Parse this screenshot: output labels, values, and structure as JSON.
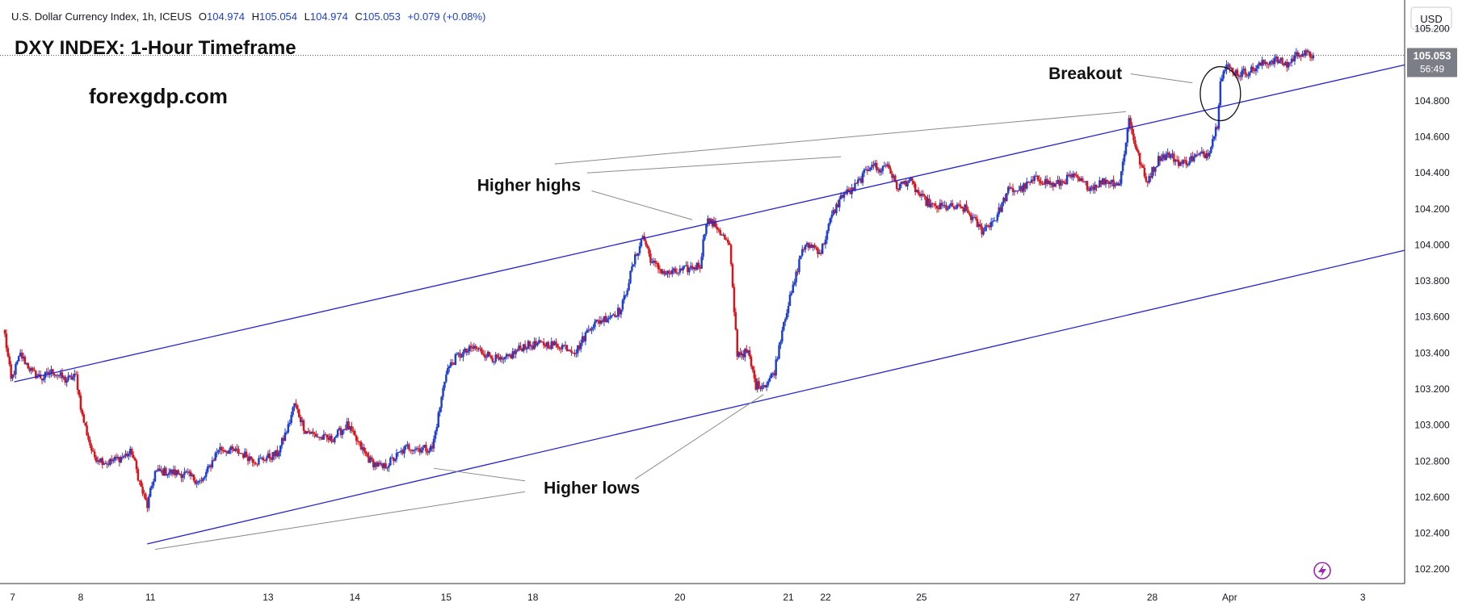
{
  "header": {
    "symbol_line": "U.S. Dollar Currency Index, 1h, ICEUS",
    "ohlc": [
      {
        "label": "O",
        "value": "104.974"
      },
      {
        "label": "H",
        "value": "105.054"
      },
      {
        "label": "L",
        "value": "104.974"
      },
      {
        "label": "C",
        "value": "105.053"
      }
    ],
    "change": "+0.079 (+0.08%)"
  },
  "currency_label": "USD",
  "price_badge": {
    "price": "105.053",
    "countdown": "56:49"
  },
  "colors": {
    "up": "#1e3fd1",
    "down": "#d5141b",
    "trendline": "#2323cc",
    "annotation_line": "#8a8a8a",
    "axis_text": "#131722",
    "price_badge_bg": "#7b7e86",
    "lightning": "#9c27b0"
  },
  "icons": {
    "lightning": "lightning-bolt-icon"
  },
  "chart_data": {
    "type": "candlestick",
    "title": "DXY INDEX: 1-Hour Timeframe",
    "watermark": "forexgdp.com",
    "y_ticks": [
      105.2,
      104.8,
      104.6,
      104.4,
      104.2,
      104.0,
      103.8,
      103.6,
      103.4,
      103.2,
      103.0,
      102.8,
      102.6,
      102.4,
      102.2
    ],
    "y_tick_labels": [
      "105.200",
      "104.800",
      "104.600",
      "104.400",
      "104.200",
      "104.000",
      "103.800",
      "103.600",
      "103.400",
      "103.200",
      "103.000",
      "102.800",
      "102.600",
      "102.400",
      "102.200"
    ],
    "ylim": [
      102.12,
      105.36
    ],
    "x_labels": [
      "7",
      "8",
      "11",
      "13",
      "14",
      "15",
      "18",
      "20",
      "21",
      "22",
      "25",
      "27",
      "28",
      "Apr",
      "3"
    ],
    "x_label_bars": [
      5,
      49,
      94,
      170,
      226,
      285,
      341,
      436,
      506,
      530,
      592,
      691,
      741,
      791,
      877
    ],
    "bar_count": 904,
    "last_close_bar": 845,
    "price_path": [
      {
        "bar": 0,
        "price": 103.5
      },
      {
        "bar": 4,
        "price": 103.25
      },
      {
        "bar": 10,
        "price": 103.39
      },
      {
        "bar": 18,
        "price": 103.29
      },
      {
        "bar": 24,
        "price": 103.26
      },
      {
        "bar": 31,
        "price": 103.3
      },
      {
        "bar": 39,
        "price": 103.25
      },
      {
        "bar": 46,
        "price": 103.27
      },
      {
        "bar": 50,
        "price": 103.05
      },
      {
        "bar": 57,
        "price": 102.83
      },
      {
        "bar": 66,
        "price": 102.79
      },
      {
        "bar": 75,
        "price": 102.82
      },
      {
        "bar": 82,
        "price": 102.85
      },
      {
        "bar": 88,
        "price": 102.65
      },
      {
        "bar": 92,
        "price": 102.55
      },
      {
        "bar": 97,
        "price": 102.74
      },
      {
        "bar": 104,
        "price": 102.74
      },
      {
        "bar": 116,
        "price": 102.73
      },
      {
        "bar": 127,
        "price": 102.68
      },
      {
        "bar": 138,
        "price": 102.87
      },
      {
        "bar": 151,
        "price": 102.85
      },
      {
        "bar": 163,
        "price": 102.8
      },
      {
        "bar": 176,
        "price": 102.84
      },
      {
        "bar": 183,
        "price": 102.99
      },
      {
        "bar": 187,
        "price": 103.12
      },
      {
        "bar": 194,
        "price": 102.97
      },
      {
        "bar": 204,
        "price": 102.93
      },
      {
        "bar": 211,
        "price": 102.92
      },
      {
        "bar": 221,
        "price": 103.0
      },
      {
        "bar": 228,
        "price": 102.9
      },
      {
        "bar": 236,
        "price": 102.8
      },
      {
        "bar": 244,
        "price": 102.76
      },
      {
        "bar": 252,
        "price": 102.82
      },
      {
        "bar": 260,
        "price": 102.88
      },
      {
        "bar": 268,
        "price": 102.87
      },
      {
        "bar": 276,
        "price": 102.87
      },
      {
        "bar": 281,
        "price": 103.1
      },
      {
        "bar": 285,
        "price": 103.3
      },
      {
        "bar": 292,
        "price": 103.38
      },
      {
        "bar": 303,
        "price": 103.43
      },
      {
        "bar": 314,
        "price": 103.38
      },
      {
        "bar": 321,
        "price": 103.35
      },
      {
        "bar": 335,
        "price": 103.44
      },
      {
        "bar": 349,
        "price": 103.45
      },
      {
        "bar": 361,
        "price": 103.44
      },
      {
        "bar": 369,
        "price": 103.41
      },
      {
        "bar": 378,
        "price": 103.55
      },
      {
        "bar": 389,
        "price": 103.6
      },
      {
        "bar": 398,
        "price": 103.64
      },
      {
        "bar": 406,
        "price": 103.9
      },
      {
        "bar": 412,
        "price": 104.05
      },
      {
        "bar": 418,
        "price": 103.9
      },
      {
        "bar": 427,
        "price": 103.84
      },
      {
        "bar": 435,
        "price": 103.85
      },
      {
        "bar": 449,
        "price": 103.89
      },
      {
        "bar": 453,
        "price": 104.14
      },
      {
        "bar": 460,
        "price": 104.1
      },
      {
        "bar": 468,
        "price": 103.99
      },
      {
        "bar": 473,
        "price": 103.4
      },
      {
        "bar": 480,
        "price": 103.4
      },
      {
        "bar": 485,
        "price": 103.22
      },
      {
        "bar": 492,
        "price": 103.23
      },
      {
        "bar": 497,
        "price": 103.3
      },
      {
        "bar": 503,
        "price": 103.58
      },
      {
        "bar": 509,
        "price": 103.76
      },
      {
        "bar": 515,
        "price": 103.98
      },
      {
        "bar": 521,
        "price": 104.0
      },
      {
        "bar": 527,
        "price": 103.96
      },
      {
        "bar": 534,
        "price": 104.16
      },
      {
        "bar": 541,
        "price": 104.28
      },
      {
        "bar": 547,
        "price": 104.3
      },
      {
        "bar": 554,
        "price": 104.38
      },
      {
        "bar": 560,
        "price": 104.46
      },
      {
        "bar": 564,
        "price": 104.41
      },
      {
        "bar": 570,
        "price": 104.45
      },
      {
        "bar": 576,
        "price": 104.32
      },
      {
        "bar": 584,
        "price": 104.36
      },
      {
        "bar": 592,
        "price": 104.26
      },
      {
        "bar": 600,
        "price": 104.21
      },
      {
        "bar": 610,
        "price": 104.21
      },
      {
        "bar": 620,
        "price": 104.2
      },
      {
        "bar": 631,
        "price": 104.08
      },
      {
        "bar": 640,
        "price": 104.15
      },
      {
        "bar": 648,
        "price": 104.3
      },
      {
        "bar": 656,
        "price": 104.31
      },
      {
        "bar": 667,
        "price": 104.37
      },
      {
        "bar": 678,
        "price": 104.33
      },
      {
        "bar": 689,
        "price": 104.38
      },
      {
        "bar": 701,
        "price": 104.32
      },
      {
        "bar": 711,
        "price": 104.36
      },
      {
        "bar": 720,
        "price": 104.34
      },
      {
        "bar": 726,
        "price": 104.7
      },
      {
        "bar": 731,
        "price": 104.52
      },
      {
        "bar": 737,
        "price": 104.35
      },
      {
        "bar": 746,
        "price": 104.49
      },
      {
        "bar": 752,
        "price": 104.5
      },
      {
        "bar": 760,
        "price": 104.45
      },
      {
        "bar": 769,
        "price": 104.49
      },
      {
        "bar": 777,
        "price": 104.51
      },
      {
        "bar": 783,
        "price": 104.67
      },
      {
        "bar": 785,
        "price": 104.93
      },
      {
        "bar": 789,
        "price": 104.99
      },
      {
        "bar": 797,
        "price": 104.95
      },
      {
        "bar": 805,
        "price": 104.97
      },
      {
        "bar": 813,
        "price": 105.01
      },
      {
        "bar": 820,
        "price": 105.03
      },
      {
        "bar": 828,
        "price": 105.0
      },
      {
        "bar": 836,
        "price": 105.07
      },
      {
        "bar": 843,
        "price": 105.05
      },
      {
        "bar": 845,
        "price": 105.053
      }
    ],
    "trendlines": [
      {
        "name": "upper-channel-line",
        "points": [
          {
            "bar": 6,
            "price": 103.24
          },
          {
            "bar": 904,
            "price": 105.0
          }
        ]
      },
      {
        "name": "lower-channel-line",
        "points": [
          {
            "bar": 92,
            "price": 102.34
          },
          {
            "bar": 904,
            "price": 103.97
          }
        ]
      }
    ],
    "annotations": [
      {
        "name": "label-breakout",
        "text": "Breakout",
        "bar": 674,
        "price": 104.92
      },
      {
        "name": "label-higher-highs",
        "text": "Higher highs",
        "bar": 305,
        "price": 104.3
      },
      {
        "name": "label-higher-lows",
        "text": "Higher lows",
        "bar": 348,
        "price": 102.62
      }
    ],
    "pointers": [
      {
        "name": "pointer-breakout",
        "from": {
          "bar": 727,
          "price": 104.95
        },
        "to": {
          "bar": 767,
          "price": 104.9
        }
      },
      {
        "name": "pointer-higher-highs-1",
        "from": {
          "bar": 355,
          "price": 104.45
        },
        "to": {
          "bar": 724,
          "price": 104.74
        }
      },
      {
        "name": "pointer-higher-highs-2",
        "from": {
          "bar": 376,
          "price": 104.4
        },
        "to": {
          "bar": 540,
          "price": 104.49
        }
      },
      {
        "name": "pointer-higher-highs-3",
        "from": {
          "bar": 379,
          "price": 104.3
        },
        "to": {
          "bar": 444,
          "price": 104.14
        }
      },
      {
        "name": "pointer-higher-lows-1",
        "from": {
          "bar": 336,
          "price": 102.63
        },
        "to": {
          "bar": 97,
          "price": 102.31
        }
      },
      {
        "name": "pointer-higher-lows-2",
        "from": {
          "bar": 336,
          "price": 102.69
        },
        "to": {
          "bar": 277,
          "price": 102.76
        }
      },
      {
        "name": "pointer-higher-lows-3",
        "from": {
          "bar": 407,
          "price": 102.7
        },
        "to": {
          "bar": 490,
          "price": 103.17
        }
      }
    ],
    "breakout_ellipse": {
      "bar": 785,
      "price": 104.84,
      "rx_bars": 13,
      "ry_price": 0.15
    },
    "dotted_level": 105.053
  }
}
